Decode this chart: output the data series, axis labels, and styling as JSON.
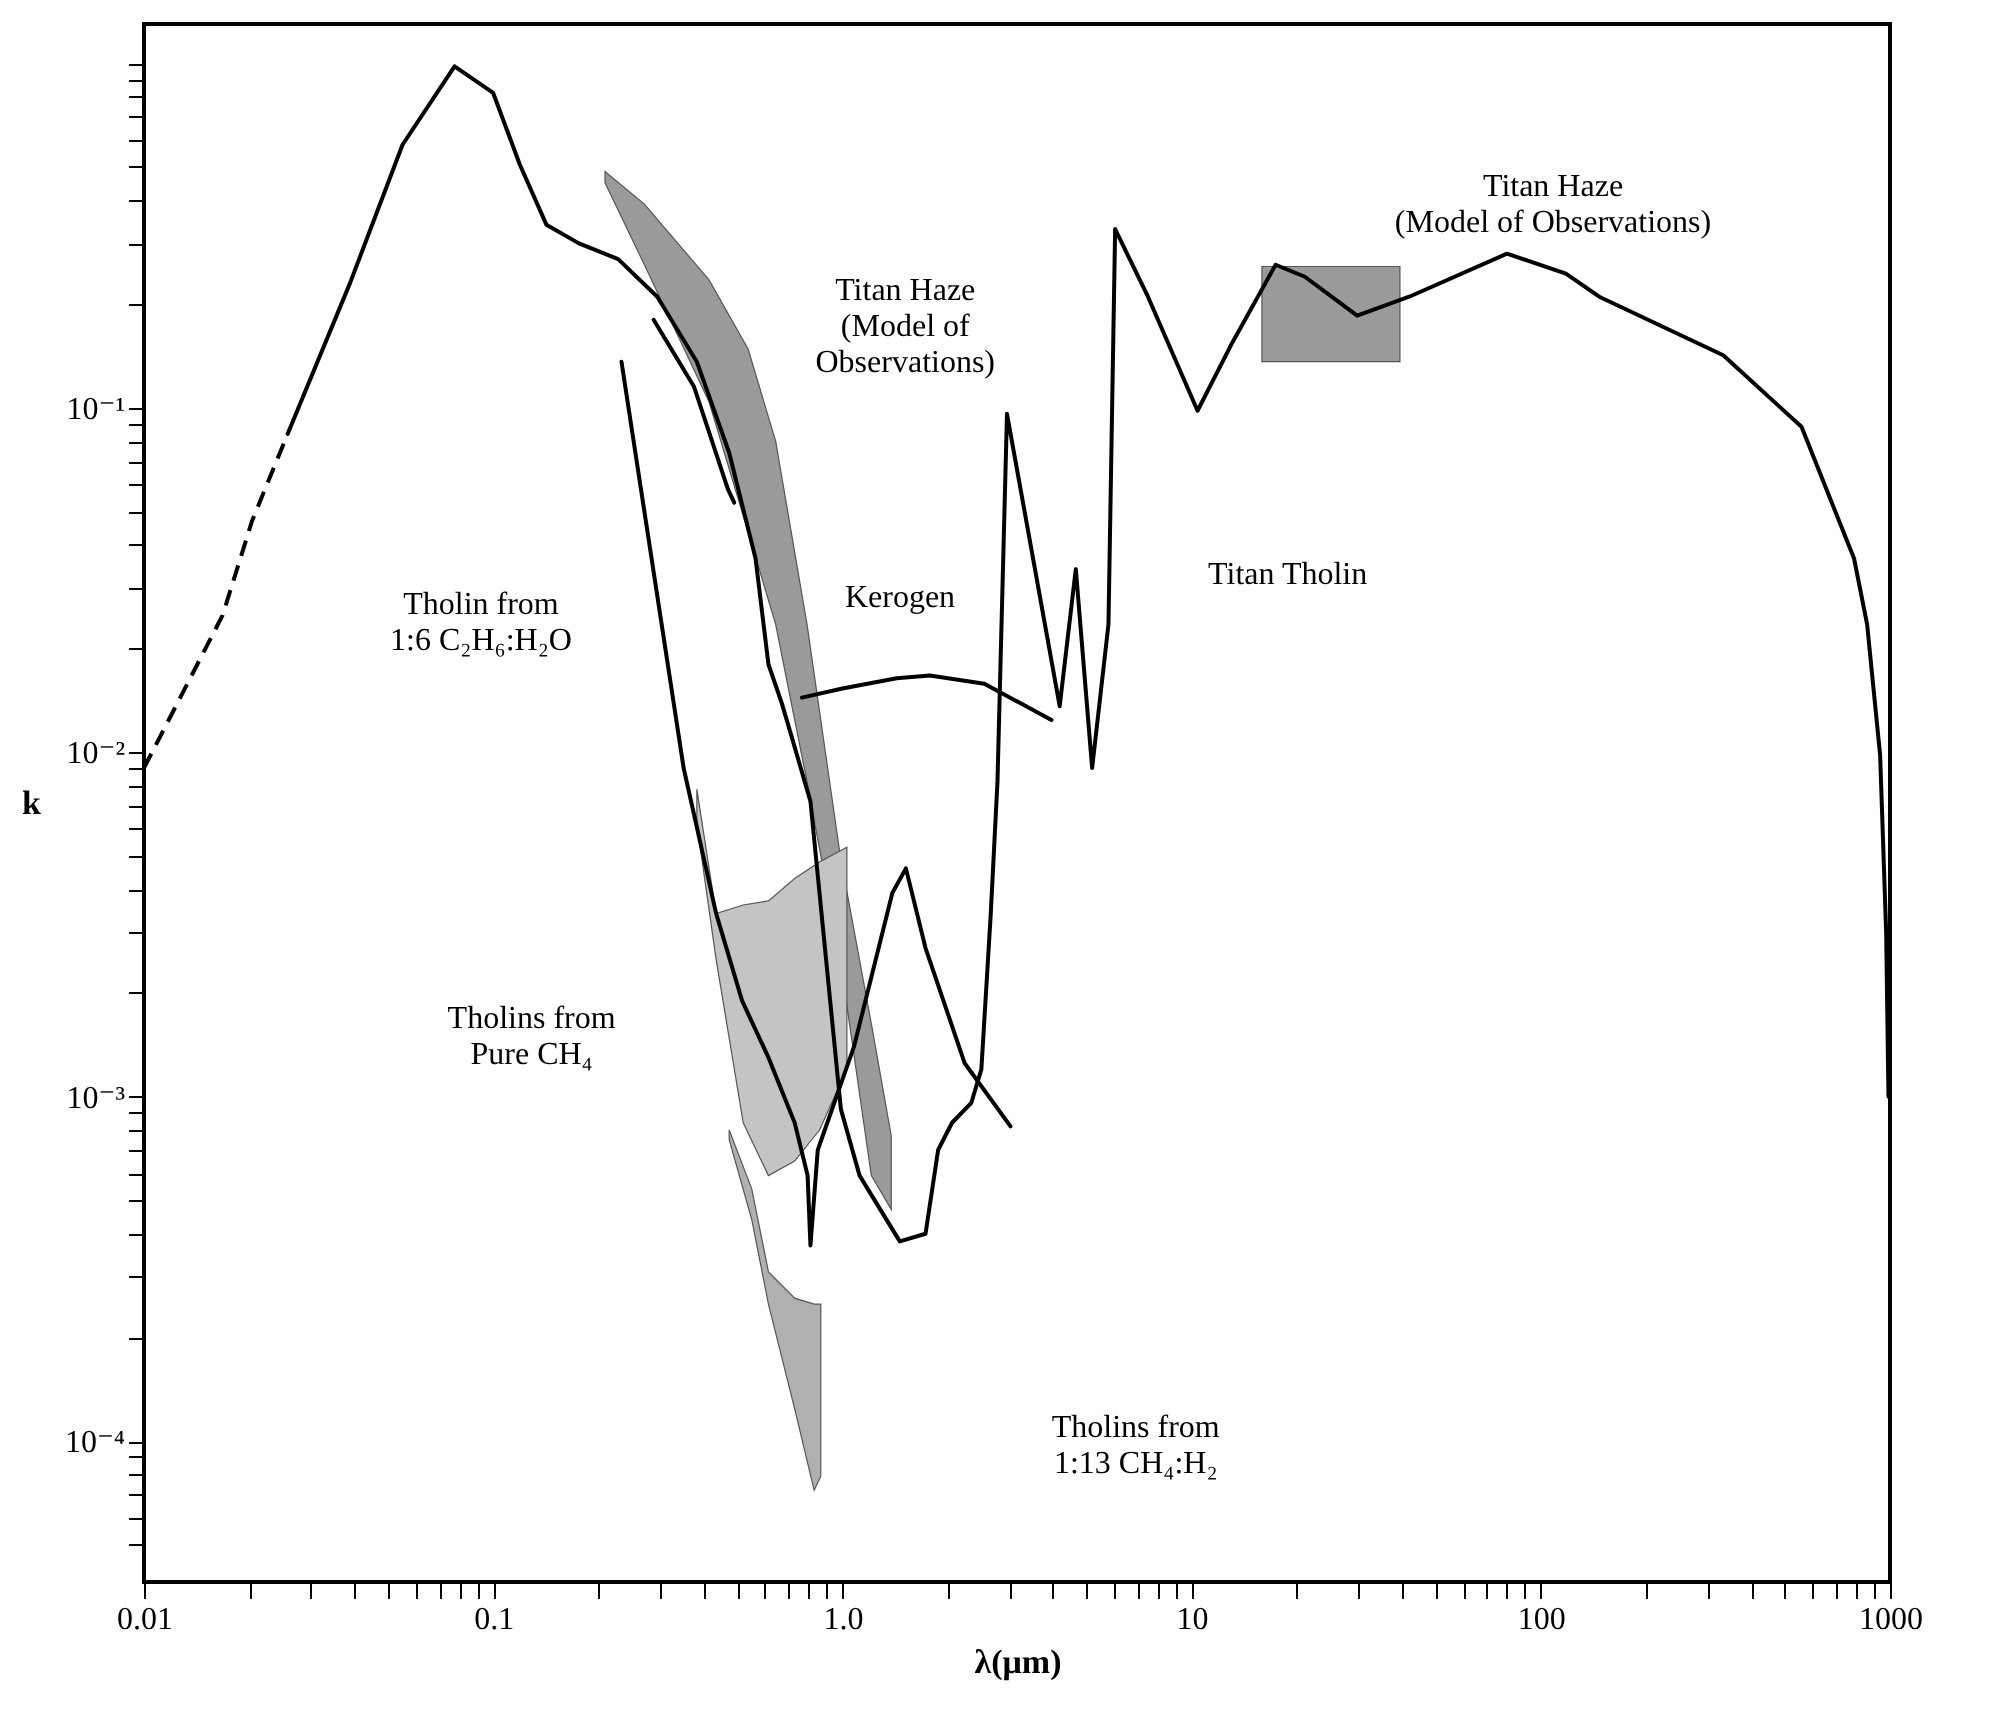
{
  "chart_data": {
    "type": "line",
    "xlabel": "λ(μm)",
    "ylabel": "k",
    "log": "xy",
    "xlim": [
      0.01,
      1000
    ],
    "ylim": [
      3.9e-05,
      1.3
    ],
    "xticks": [
      0.01,
      {
        "value": 0.02,
        "label": null
      },
      {
        "value": 0.03,
        "label": null
      },
      {
        "value": 0.04,
        "label": null
      },
      {
        "value": 0.05,
        "label": null
      },
      {
        "value": 0.06,
        "label": null
      },
      {
        "value": 0.07,
        "label": null
      },
      {
        "value": 0.08,
        "label": null
      },
      {
        "value": 0.09,
        "label": null
      },
      0.1,
      {
        "value": 0.2,
        "label": null
      },
      {
        "value": 0.3,
        "label": null
      },
      {
        "value": 0.4,
        "label": null
      },
      {
        "value": 0.5,
        "label": null
      },
      {
        "value": 0.6,
        "label": null
      },
      {
        "value": 0.7,
        "label": null
      },
      {
        "value": 0.8,
        "label": null
      },
      {
        "value": 0.9,
        "label": null
      },
      {
        "value": 1,
        "label": "1.0"
      },
      {
        "value": 2,
        "label": null
      },
      {
        "value": 3,
        "label": null
      },
      {
        "value": 4,
        "label": null
      },
      {
        "value": 5,
        "label": null
      },
      {
        "value": 6,
        "label": null
      },
      {
        "value": 7,
        "label": null
      },
      {
        "value": 8,
        "label": null
      },
      {
        "value": 9,
        "label": null
      },
      10,
      {
        "value": 20,
        "label": null
      },
      {
        "value": 30,
        "label": null
      },
      {
        "value": 40,
        "label": null
      },
      {
        "value": 50,
        "label": null
      },
      {
        "value": 60,
        "label": null
      },
      {
        "value": 70,
        "label": null
      },
      {
        "value": 80,
        "label": null
      },
      {
        "value": 90,
        "label": null
      },
      100,
      {
        "value": 200,
        "label": null
      },
      {
        "value": 300,
        "label": null
      },
      {
        "value": 400,
        "label": null
      },
      {
        "value": 500,
        "label": null
      },
      {
        "value": 600,
        "label": null
      },
      {
        "value": 700,
        "label": null
      },
      {
        "value": 800,
        "label": null
      },
      {
        "value": 900,
        "label": null
      },
      1000
    ],
    "yticks": [
      {
        "value": 5e-05,
        "label": null
      },
      {
        "value": 6e-05,
        "label": null
      },
      {
        "value": 7e-05,
        "label": null
      },
      {
        "value": 8e-05,
        "label": null
      },
      {
        "value": 9e-05,
        "label": null
      },
      {
        "value": 0.0001,
        "label": "10⁻⁴"
      },
      {
        "value": 0.0002,
        "label": null
      },
      {
        "value": 0.0003,
        "label": null
      },
      {
        "value": 0.0004,
        "label": null
      },
      {
        "value": 0.0005,
        "label": null
      },
      {
        "value": 0.0006,
        "label": null
      },
      {
        "value": 0.0007,
        "label": null
      },
      {
        "value": 0.0008,
        "label": null
      },
      {
        "value": 0.0009,
        "label": null
      },
      {
        "value": 0.001,
        "label": "10⁻³"
      },
      {
        "value": 0.002,
        "label": null
      },
      {
        "value": 0.003,
        "label": null
      },
      {
        "value": 0.004,
        "label": null
      },
      {
        "value": 0.005,
        "label": null
      },
      {
        "value": 0.006,
        "label": null
      },
      {
        "value": 0.007,
        "label": null
      },
      {
        "value": 0.008,
        "label": null
      },
      {
        "value": 0.009,
        "label": null
      },
      {
        "value": 0.01,
        "label": "10⁻²"
      },
      {
        "value": 0.02,
        "label": null
      },
      {
        "value": 0.03,
        "label": null
      },
      {
        "value": 0.04,
        "label": null
      },
      {
        "value": 0.05,
        "label": null
      },
      {
        "value": 0.06,
        "label": null
      },
      {
        "value": 0.07,
        "label": null
      },
      {
        "value": 0.08,
        "label": null
      },
      {
        "value": 0.09,
        "label": null
      },
      {
        "value": 0.1,
        "label": "10⁻¹"
      },
      {
        "value": 0.2,
        "label": null
      },
      {
        "value": 0.3,
        "label": null
      },
      {
        "value": 0.4,
        "label": null
      },
      {
        "value": 0.5,
        "label": null
      },
      {
        "value": 0.6,
        "label": null
      },
      {
        "value": 0.7,
        "label": null
      },
      {
        "value": 0.8,
        "label": null
      },
      {
        "value": 0.9,
        "label": null
      },
      {
        "value": 1,
        "label": null
      }
    ],
    "annotations": [
      "Titan Haze\n(Model of\nObservations)",
      "Titan Haze\n(Model of Observations)",
      "Tholin from\n1:6 C₂H₆:H₂O",
      "Kerogen",
      "Titan Tholin",
      "Tholins from\nPure CH₄",
      "Tholins from\n1:13 CH₄:H₂"
    ],
    "series": [
      {
        "type": "line",
        "color": "#9a9a9a",
        "x": [
          0.209,
          0.271,
          0.415,
          0.537,
          0.644,
          0.792,
          0.986,
          1.21,
          1.38
        ],
        "values": [
          null,
          null,
          null,
          null,
          null,
          null,
          null,
          null,
          null
        ],
        "lower": [
          0.45,
          0.26,
          0.104,
          0.0436,
          0.0235,
          0.0082,
          0.0025,
          0.00059,
          0.00047
        ],
        "upper": [
          0.485,
          0.39,
          0.235,
          0.148,
          0.08,
          0.0235,
          0.005,
          0.00163,
          0.00077
        ]
      },
      {
        "type": "line",
        "color": "#9a9a9a",
        "x": [
          15.9,
          39.5
        ],
        "values": [
          null,
          null
        ],
        "lower": [
          0.136,
          0.136
        ],
        "upper": [
          0.257,
          0.257
        ]
      },
      {
        "type": "line",
        "color": "#c4c4c4",
        "x": [
          0.383,
          0.435,
          0.52,
          0.614,
          0.73,
          0.86,
          1.03
        ],
        "values": [
          null,
          null,
          null,
          null,
          null,
          null,
          null
        ],
        "lower": [
          0.0062,
          0.0025,
          0.00084,
          0.00059,
          0.00065,
          0.0008,
          0.0012
        ],
        "upper": [
          0.0078,
          0.0034,
          0.0036,
          0.0037,
          0.0043,
          0.0048,
          0.0053
        ]
      },
      {
        "type": "line",
        "color": "#b0b0b0",
        "x": [
          0.474,
          0.55,
          0.614,
          0.73,
          0.83,
          0.867
        ],
        "values": [
          null,
          null,
          null,
          null,
          null,
          null
        ],
        "lower": [
          0.00075,
          0.00044,
          0.00025,
          0.000124,
          7.2e-05,
          7.9e-05
        ],
        "upper": [
          0.0008,
          0.00054,
          0.00031,
          0.00026,
          0.00025,
          0.00025
        ]
      },
      {
        "type": "line",
        "color": "#000000",
        "line_style": "dashed",
        "x": [
          0.01,
          0.0168,
          0.0204,
          0.0258
        ],
        "values": [
          0.009,
          0.025,
          0.047,
          0.084
        ]
      },
      {
        "type": "line",
        "color": "#000000",
        "line_style": "solid",
        "x": [
          0.0258,
          0.0389,
          0.055,
          0.0775,
          0.1,
          0.119,
          0.142,
          0.176,
          0.228,
          0.295,
          0.383,
          0.474,
          0.564,
          0.614,
          0.67,
          0.71,
          0.81,
          0.99,
          1.12,
          1.46,
          1.73,
          1.88,
          2.06,
          2.34,
          2.5,
          2.66,
          2.78,
          2.96,
          4.19,
          4.66,
          5.19,
          5.78,
          6.04,
          7.5,
          10.4,
          13.1,
          17.4,
          21.1,
          29.8,
          42,
          80,
          118,
          147,
          333,
          558,
          789,
          860,
          937,
          975,
          990
        ],
        "values": [
          0.084,
          0.23,
          0.58,
          0.98,
          0.82,
          0.51,
          0.34,
          0.3,
          0.27,
          0.21,
          0.136,
          0.074,
          0.0365,
          0.018,
          0.0139,
          0.0114,
          0.0072,
          0.00092,
          0.00059,
          0.00038,
          0.0004,
          0.0007,
          0.00084,
          0.00096,
          0.0012,
          0.0034,
          0.0082,
          0.096,
          0.0136,
          0.034,
          0.009,
          0.0235,
          0.33,
          0.21,
          0.098,
          0.155,
          0.26,
          0.24,
          0.185,
          0.21,
          0.28,
          0.245,
          0.21,
          0.142,
          0.088,
          0.0365,
          0.0235,
          0.0098,
          0.003,
          0.001
        ]
      },
      {
        "type": "line",
        "color": "#000000",
        "line_style": "solid",
        "x": [
          0.288,
          0.376,
          0.47,
          0.49
        ],
        "values": [
          0.18,
          0.115,
          0.058,
          0.053
        ]
      },
      {
        "type": "line",
        "color": "#000000",
        "line_style": "solid",
        "x": [
          0.766,
          1.0,
          1.43,
          1.78,
          2.55,
          3.97
        ],
        "values": [
          0.0144,
          0.0153,
          0.0164,
          0.0167,
          0.0158,
          0.0124
        ]
      },
      {
        "type": "line",
        "color": "#000000",
        "line_style": "solid",
        "x": [
          0.233,
          0.351,
          0.435,
          0.516,
          0.614,
          0.73,
          0.795,
          0.81,
          0.85,
          1.08,
          1.39,
          1.52,
          1.73,
          2.24,
          3.03
        ],
        "values": [
          0.136,
          0.009,
          0.0034,
          0.0019,
          0.0013,
          0.00084,
          0.00059,
          0.00037,
          0.0007,
          0.0014,
          0.0039,
          0.0046,
          0.0027,
          0.00125,
          0.00082
        ]
      }
    ]
  }
}
